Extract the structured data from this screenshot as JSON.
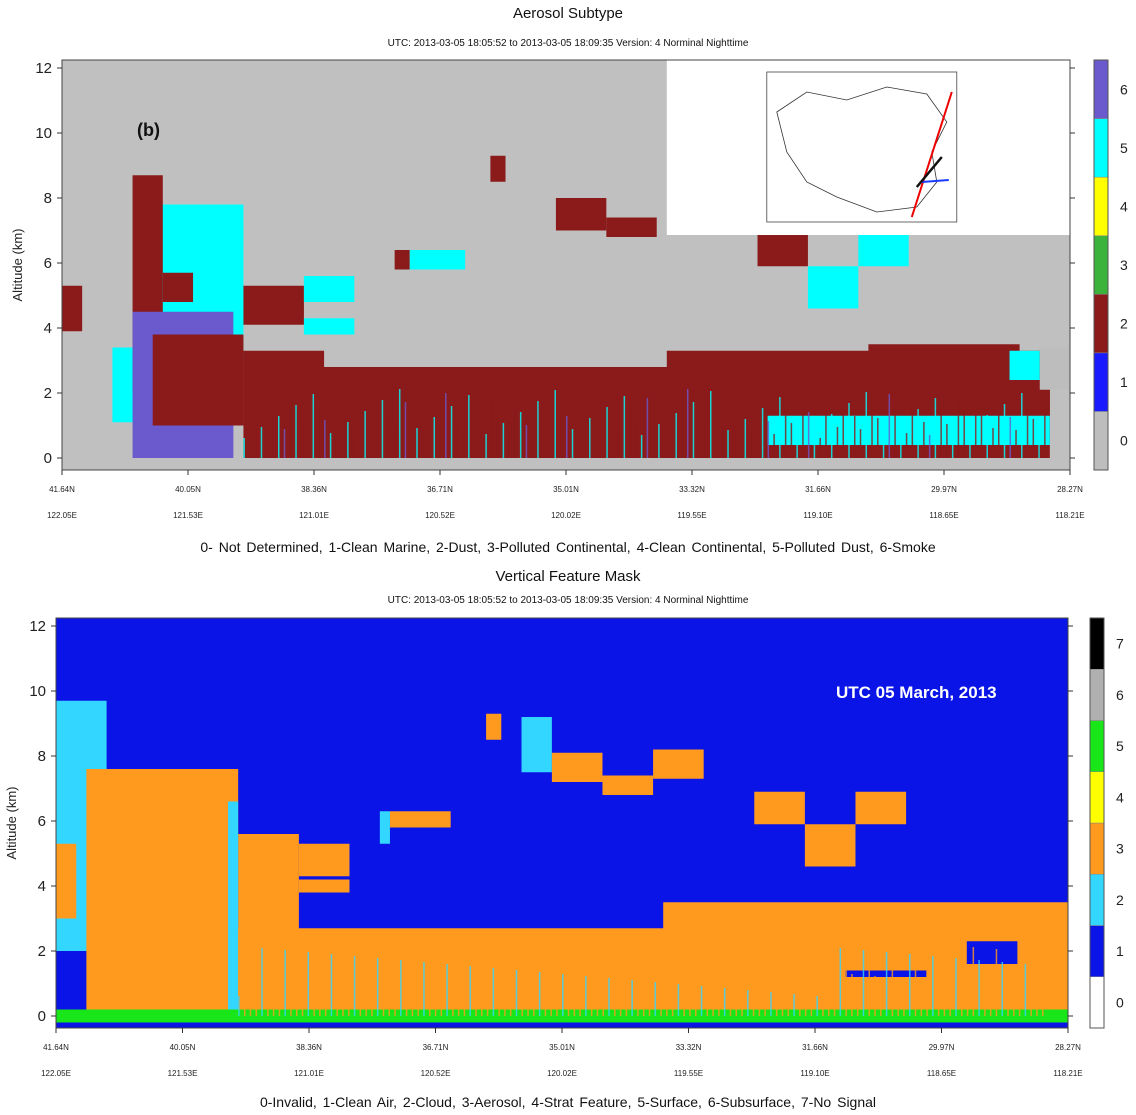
{
  "panels": [
    {
      "title": "Aerosol Subtype",
      "subtitle": "UTC: 2013-03-05 18:05:52 to 2013-03-05 18:09:35 Version: 4 Norminal Nighttime",
      "panel_label": "(b)",
      "annotation": "",
      "legend_text": "0- Not Determined,    1-Clean Marine,    2-Dust,    3-Polluted Continental,    4-Clean Continental,    5-Polluted Dust,    6-Smoke",
      "colorbar_colors": [
        "#bdbdbd",
        "#1a1aff",
        "#8b1a1a",
        "#3cb43c",
        "#ffff00",
        "#00ffff",
        "#6a5acd"
      ],
      "colorbar_labels": [
        "0",
        "1",
        "2",
        "3",
        "4",
        "5",
        "6"
      ],
      "background": "#c0c0c0",
      "has_inset_map": true
    },
    {
      "title": "Vertical Feature Mask",
      "subtitle": "UTC: 2013-03-05 18:05:52 to 2013-03-05 18:09:35 Version: 4 Norminal Nighttime",
      "panel_label": "",
      "annotation": "UTC 05 March, 2013",
      "legend_text": "0-Invalid,    1-Clean Air,    2-Cloud,    3-Aerosol,    4-Strat Feature,    5-Surface,    6-Subsurface,    7-No Signal",
      "colorbar_colors": [
        "#ffffff",
        "#0a14e6",
        "#33d6ff",
        "#ff9a1f",
        "#ffff00",
        "#19e619",
        "#b0b0b0",
        "#000000"
      ],
      "colorbar_labels": [
        "0",
        "1",
        "2",
        "3",
        "4",
        "5",
        "6",
        "7"
      ],
      "background": "#0a14e6",
      "has_inset_map": false
    }
  ],
  "chart_data": [
    {
      "type": "heatmap",
      "title": "Aerosol Subtype",
      "ylabel": "Altitude (km)",
      "ylim": [
        0,
        12
      ],
      "yticks": [
        "0",
        "2",
        "4",
        "6",
        "8",
        "10",
        "12"
      ],
      "x_lat": [
        "41.64N",
        "40.05N",
        "38.36N",
        "36.71N",
        "35.01N",
        "33.32N",
        "31.66N",
        "29.97N",
        "28.27N"
      ],
      "x_lon": [
        "122.05E",
        "121.53E",
        "121.01E",
        "120.52E",
        "120.02E",
        "119.55E",
        "119.10E",
        "118.65E",
        "118.21E"
      ],
      "categories": [
        "0",
        "1",
        "2",
        "3",
        "4",
        "5",
        "6"
      ],
      "blocks": [
        {
          "cls": 2,
          "x0": 0.0,
          "x1": 0.02,
          "y0": 3.9,
          "y1": 5.3
        },
        {
          "cls": 5,
          "x0": 0.05,
          "x1": 0.09,
          "y0": 1.1,
          "y1": 3.4
        },
        {
          "cls": 5,
          "x0": 0.08,
          "x1": 0.18,
          "y0": 3.0,
          "y1": 7.8
        },
        {
          "cls": 2,
          "x0": 0.07,
          "x1": 0.1,
          "y0": 2.0,
          "y1": 8.7
        },
        {
          "cls": 6,
          "x0": 0.07,
          "x1": 0.17,
          "y0": 0.0,
          "y1": 4.5
        },
        {
          "cls": 2,
          "x0": 0.09,
          "x1": 0.18,
          "y0": 1.0,
          "y1": 3.8
        },
        {
          "cls": 2,
          "x0": 0.1,
          "x1": 0.13,
          "y0": 4.8,
          "y1": 5.7
        },
        {
          "cls": 5,
          "x0": 0.14,
          "x1": 0.18,
          "y0": 6.5,
          "y1": 7.2
        },
        {
          "cls": 2,
          "x0": 0.18,
          "x1": 0.24,
          "y0": 4.1,
          "y1": 5.3
        },
        {
          "cls": 5,
          "x0": 0.24,
          "x1": 0.29,
          "y0": 4.8,
          "y1": 5.6
        },
        {
          "cls": 5,
          "x0": 0.24,
          "x1": 0.29,
          "y0": 3.8,
          "y1": 4.3
        },
        {
          "cls": 2,
          "x0": 0.18,
          "x1": 0.26,
          "y0": 2.4,
          "y1": 3.3
        },
        {
          "cls": 2,
          "x0": 0.33,
          "x1": 0.345,
          "y0": 5.8,
          "y1": 6.4
        },
        {
          "cls": 5,
          "x0": 0.345,
          "x1": 0.4,
          "y0": 5.8,
          "y1": 6.4
        },
        {
          "cls": 2,
          "x0": 0.425,
          "x1": 0.44,
          "y0": 8.5,
          "y1": 9.3
        },
        {
          "cls": 2,
          "x0": 0.49,
          "x1": 0.54,
          "y0": 7.0,
          "y1": 8.0
        },
        {
          "cls": 2,
          "x0": 0.54,
          "x1": 0.59,
          "y0": 6.8,
          "y1": 7.4
        },
        {
          "cls": 2,
          "x0": 0.69,
          "x1": 0.74,
          "y0": 5.9,
          "y1": 6.9
        },
        {
          "cls": 5,
          "x0": 0.74,
          "x1": 0.79,
          "y0": 4.6,
          "y1": 5.9
        },
        {
          "cls": 5,
          "x0": 0.79,
          "x1": 0.84,
          "y0": 5.9,
          "y1": 6.9
        },
        {
          "cls": 2,
          "x0": 0.18,
          "x1": 0.98,
          "y0": 0.0,
          "y1": 2.8
        },
        {
          "cls": 2,
          "x0": 0.6,
          "x1": 0.98,
          "y0": 0.6,
          "y1": 3.3
        },
        {
          "cls": 2,
          "x0": 0.8,
          "x1": 0.95,
          "y0": 1.5,
          "y1": 3.5
        },
        {
          "cls": 5,
          "x0": 0.94,
          "x1": 0.97,
          "y0": 2.4,
          "y1": 3.3
        },
        {
          "cls": 0,
          "x0": 0.97,
          "x1": 1.0,
          "y0": 2.1,
          "y1": 3.4
        },
        {
          "cls": 5,
          "x0": 0.7,
          "x1": 0.98,
          "y0": 0.4,
          "y1": 1.3
        }
      ]
    },
    {
      "type": "heatmap",
      "title": "Vertical Feature Mask",
      "ylabel": "Altitude (km)",
      "ylim": [
        0,
        12
      ],
      "yticks": [
        "0",
        "2",
        "4",
        "6",
        "8",
        "10",
        "12"
      ],
      "x_lat": [
        "41.64N",
        "40.05N",
        "38.36N",
        "36.71N",
        "35.01N",
        "33.32N",
        "31.66N",
        "29.97N",
        "28.27N"
      ],
      "x_lon": [
        "122.05E",
        "121.53E",
        "121.01E",
        "120.52E",
        "120.02E",
        "119.55E",
        "119.10E",
        "118.65E",
        "118.21E"
      ],
      "categories": [
        "0",
        "1",
        "2",
        "3",
        "4",
        "5",
        "6",
        "7"
      ],
      "blocks": [
        {
          "cls": 2,
          "x0": 0.0,
          "x1": 0.05,
          "y0": 2.0,
          "y1": 9.7
        },
        {
          "cls": 3,
          "x0": 0.0,
          "x1": 0.02,
          "y0": 3.0,
          "y1": 5.3
        },
        {
          "cls": 3,
          "x0": 0.03,
          "x1": 0.18,
          "y0": 0.0,
          "y1": 7.6
        },
        {
          "cls": 3,
          "x0": 0.18,
          "x1": 0.24,
          "y0": 0.0,
          "y1": 5.6
        },
        {
          "cls": 3,
          "x0": 0.24,
          "x1": 0.29,
          "y0": 4.3,
          "y1": 5.3
        },
        {
          "cls": 3,
          "x0": 0.24,
          "x1": 0.29,
          "y0": 3.8,
          "y1": 4.2
        },
        {
          "cls": 2,
          "x0": 0.17,
          "x1": 0.18,
          "y0": 0.0,
          "y1": 6.6
        },
        {
          "cls": 3,
          "x0": 0.33,
          "x1": 0.39,
          "y0": 5.8,
          "y1": 6.3
        },
        {
          "cls": 2,
          "x0": 0.32,
          "x1": 0.33,
          "y0": 5.3,
          "y1": 6.3
        },
        {
          "cls": 3,
          "x0": 0.425,
          "x1": 0.44,
          "y0": 8.5,
          "y1": 9.3
        },
        {
          "cls": 2,
          "x0": 0.46,
          "x1": 0.49,
          "y0": 7.5,
          "y1": 9.2
        },
        {
          "cls": 3,
          "x0": 0.49,
          "x1": 0.54,
          "y0": 7.2,
          "y1": 8.1
        },
        {
          "cls": 3,
          "x0": 0.54,
          "x1": 0.59,
          "y0": 6.8,
          "y1": 7.4
        },
        {
          "cls": 3,
          "x0": 0.59,
          "x1": 0.64,
          "y0": 7.3,
          "y1": 8.2
        },
        {
          "cls": 3,
          "x0": 0.69,
          "x1": 0.74,
          "y0": 5.9,
          "y1": 6.9
        },
        {
          "cls": 3,
          "x0": 0.74,
          "x1": 0.79,
          "y0": 4.6,
          "y1": 5.9
        },
        {
          "cls": 3,
          "x0": 0.79,
          "x1": 0.84,
          "y0": 5.9,
          "y1": 6.9
        },
        {
          "cls": 3,
          "x0": 0.18,
          "x1": 1.0,
          "y0": 0.2,
          "y1": 2.7
        },
        {
          "cls": 3,
          "x0": 0.6,
          "x1": 1.0,
          "y0": 0.2,
          "y1": 3.5
        },
        {
          "cls": 1,
          "x0": 0.78,
          "x1": 0.86,
          "y0": 1.2,
          "y1": 1.4
        },
        {
          "cls": 1,
          "x0": 0.9,
          "x1": 0.95,
          "y0": 1.6,
          "y1": 2.3
        },
        {
          "cls": 5,
          "x0": 0.0,
          "x1": 1.0,
          "y0": -0.2,
          "y1": 0.2
        }
      ]
    }
  ]
}
